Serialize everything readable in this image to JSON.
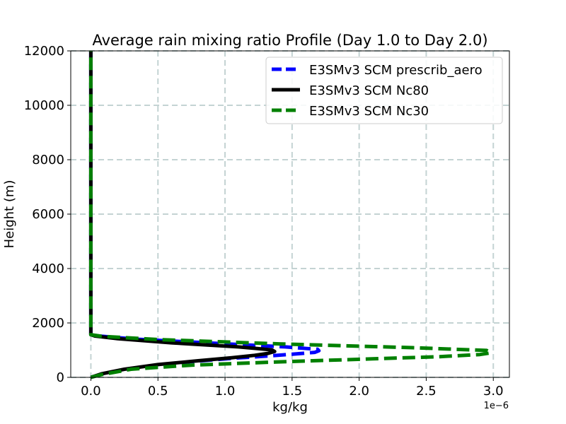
{
  "chart_data": {
    "type": "line",
    "title": "Average rain mixing ratio Profile (Day 1.0 to Day 2.0)",
    "xlabel": "kg/kg",
    "ylabel": "Height (m)",
    "x_offset_text": "1e−6",
    "xlim": [
      -0.15,
      3.12
    ],
    "ylim": [
      0,
      12000
    ],
    "xticks": [
      0.0,
      0.5,
      1.0,
      1.5,
      2.0,
      2.5,
      3.0
    ],
    "xtick_labels": [
      "0.0",
      "0.5",
      "1.0",
      "1.5",
      "2.0",
      "2.5",
      "3.0"
    ],
    "yticks": [
      0,
      2000,
      4000,
      6000,
      8000,
      10000,
      12000
    ],
    "ytick_labels": [
      "0",
      "2000",
      "4000",
      "6000",
      "8000",
      "10000",
      "12000"
    ],
    "grid": true,
    "legend_position": "top-right",
    "series": [
      {
        "name": "E3SMv3 SCM prescrib_aero",
        "color": "#0000ff",
        "style": "dashed",
        "x": [
          0.0,
          0.07,
          0.22,
          0.45,
          0.75,
          1.05,
          1.3,
          1.5,
          1.67,
          1.7,
          1.69,
          1.45,
          0.9,
          0.35,
          0.06,
          0.0,
          0.0,
          0.0
        ],
        "y": [
          0,
          100,
          250,
          420,
          580,
          700,
          780,
          850,
          920,
          980,
          1030,
          1120,
          1260,
          1400,
          1520,
          1570,
          6000,
          12000
        ]
      },
      {
        "name": "E3SMv3 SCM Nc80",
        "color": "#000000",
        "style": "solid",
        "x": [
          0.0,
          0.08,
          0.25,
          0.5,
          0.8,
          1.05,
          1.22,
          1.32,
          1.37,
          1.35,
          1.1,
          0.6,
          0.2,
          0.03,
          0.0,
          0.0,
          0.0
        ],
        "y": [
          0,
          130,
          300,
          470,
          610,
          720,
          810,
          880,
          950,
          1010,
          1120,
          1270,
          1420,
          1520,
          1570,
          6000,
          12000
        ]
      },
      {
        "name": "E3SMv3 SCM Nc30",
        "color": "#008000",
        "style": "dashed",
        "x": [
          0.0,
          0.08,
          0.3,
          0.75,
          1.4,
          2.1,
          2.6,
          2.9,
          2.98,
          2.95,
          2.4,
          1.4,
          0.5,
          0.08,
          0.0,
          0.0,
          0.0
        ],
        "y": [
          0,
          100,
          300,
          450,
          570,
          680,
          760,
          840,
          900,
          990,
          1090,
          1230,
          1390,
          1510,
          1570,
          6000,
          12000
        ]
      }
    ]
  }
}
